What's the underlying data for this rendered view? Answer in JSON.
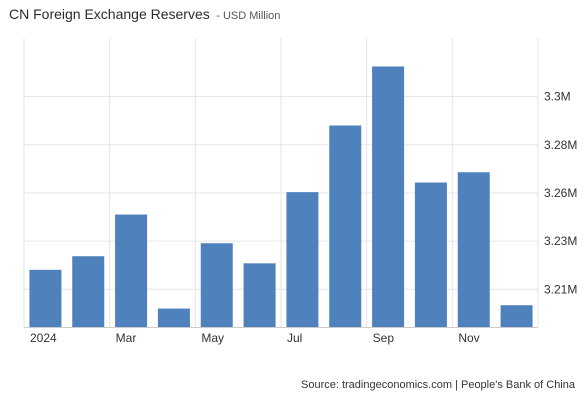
{
  "header": {
    "title": "CN Foreign Exchange Reserves",
    "subtitle": "- USD Million"
  },
  "footer": {
    "source": "Source: tradingeconomics.com | People's Bank of China"
  },
  "chart_data": {
    "type": "bar",
    "title": "CN Foreign Exchange Reserves",
    "subtitle": "USD Million",
    "unit": "USD Million",
    "categories": [
      "2024-01",
      "2024-02",
      "2024-03",
      "2024-04",
      "2024-05",
      "2024-06",
      "2024-07",
      "2024-08",
      "2024-09",
      "2024-10",
      "2024-11",
      "2024-12"
    ],
    "x_tick_labels": [
      {
        "category": "2024-01",
        "label": "2024"
      },
      {
        "category": "2024-03",
        "label": "Mar"
      },
      {
        "category": "2024-05",
        "label": "May"
      },
      {
        "category": "2024-07",
        "label": "Jul"
      },
      {
        "category": "2024-09",
        "label": "Sep"
      },
      {
        "category": "2024-11",
        "label": "Nov"
      }
    ],
    "values": [
      3219300,
      3225800,
      3245700,
      3200800,
      3232000,
      3222400,
      3256400,
      3288200,
      3316400,
      3261000,
      3265900,
      3202400
    ],
    "ylim": [
      3192000,
      3330000
    ],
    "y_ticks": [
      {
        "value": 3210000,
        "label": "3.21M"
      },
      {
        "value": 3233000,
        "label": "3.23M"
      },
      {
        "value": 3256000,
        "label": "3.26M"
      },
      {
        "value": 3279000,
        "label": "3.28M"
      },
      {
        "value": 3302000,
        "label": "3.3M"
      }
    ],
    "y_axis_side": "right",
    "grid": true,
    "bar_color": "#4f81bd",
    "grid_color": "#e6e6e6"
  }
}
